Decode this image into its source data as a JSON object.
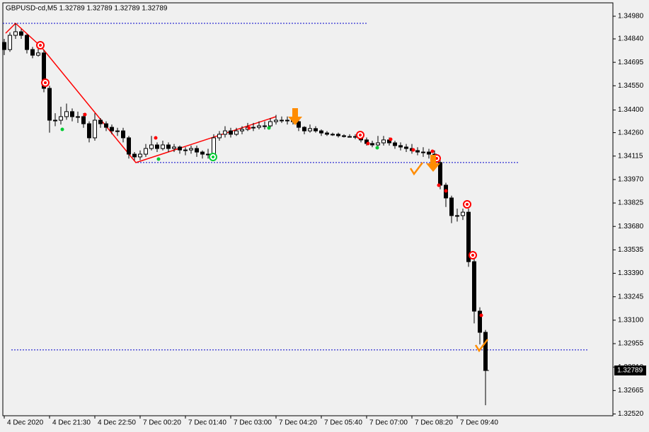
{
  "chart_data": {
    "type": "candlestick",
    "title": "GBPUSD-cd,M5  1.32789 1.32789 1.32789 1.32789",
    "open": [
      1.34818,
      1.34774,
      1.34862,
      1.34884,
      1.34862,
      1.34774,
      1.34739,
      1.34753,
      1.34534,
      1.34337,
      1.34337,
      1.34359,
      1.3439,
      1.34359,
      1.34359,
      1.34315,
      1.34228,
      1.34337,
      1.34315,
      1.34293,
      1.34271,
      1.34271,
      1.34228,
      1.34127,
      1.3411,
      1.34127,
      1.34162,
      1.34184,
      1.34162,
      1.34184,
      1.34162,
      1.34171,
      1.34153,
      1.34153,
      1.34162,
      1.3414,
      1.34127,
      1.34127,
      1.34228,
      1.3425,
      1.34271,
      1.3425,
      1.34271,
      1.3428,
      1.34293,
      1.34293,
      1.34302,
      1.34302,
      1.34328,
      1.34337,
      1.34337,
      1.34337,
      1.34328,
      1.34293,
      1.34271,
      1.34285,
      1.34271,
      1.34258,
      1.3425,
      1.3425,
      1.34241,
      1.34236,
      1.34236,
      1.34232,
      1.34215,
      1.34193,
      1.34184,
      1.34197,
      1.34215,
      1.34197,
      1.3418,
      1.34171,
      1.34162,
      1.34149,
      1.3414,
      1.3414,
      1.34127,
      1.34075,
      1.33935,
      1.33856,
      1.33747,
      1.33747,
      1.33768,
      1.33462,
      1.33156,
      1.33025
    ],
    "high": [
      1.3484,
      1.3488,
      1.34936,
      1.349,
      1.3487,
      1.3479,
      1.3478,
      1.3477,
      1.3455,
      1.3438,
      1.3442,
      1.3444,
      1.3441,
      1.3439,
      1.3438,
      1.3433,
      1.3438,
      1.3435,
      1.3433,
      1.3431,
      1.3429,
      1.3429,
      1.3424,
      1.3414,
      1.3415,
      1.3419,
      1.3424,
      1.342,
      1.3421,
      1.342,
      1.3419,
      1.3418,
      1.3417,
      1.3418,
      1.3418,
      1.3415,
      1.3416,
      1.3425,
      1.3427,
      1.343,
      1.3429,
      1.3429,
      1.343,
      1.3432,
      1.3432,
      1.3433,
      1.3433,
      1.3435,
      1.3437,
      1.3436,
      1.3436,
      1.3435,
      1.3434,
      1.343,
      1.3431,
      1.343,
      1.3428,
      1.3427,
      1.3426,
      1.3426,
      1.3425,
      1.3425,
      1.3425,
      1.3425,
      1.3423,
      1.3421,
      1.3424,
      1.3424,
      1.3423,
      1.3421,
      1.342,
      1.3419,
      1.3419,
      1.3417,
      1.3417,
      1.3416,
      1.3415,
      1.3409,
      1.3395,
      1.3387,
      1.3379,
      1.3379,
      1.3379,
      1.3348,
      1.3318,
      1.3304
    ],
    "low": [
      1.3474,
      1.3476,
      1.3484,
      1.3484,
      1.3475,
      1.3472,
      1.3473,
      1.3451,
      1.3426,
      1.343,
      1.3431,
      1.3434,
      1.3433,
      1.3432,
      1.3429,
      1.342,
      1.3421,
      1.3429,
      1.3427,
      1.3425,
      1.3424,
      1.342,
      1.341,
      1.3409,
      1.3409,
      1.3411,
      1.3415,
      1.3414,
      1.3415,
      1.3414,
      1.3414,
      1.3413,
      1.3412,
      1.3413,
      1.3411,
      1.341,
      1.341,
      1.3411,
      1.3421,
      1.3423,
      1.3423,
      1.3424,
      1.3425,
      1.3427,
      1.3427,
      1.3428,
      1.3428,
      1.3429,
      1.3431,
      1.3432,
      1.3431,
      1.3431,
      1.3427,
      1.3425,
      1.3426,
      1.3426,
      1.3424,
      1.3424,
      1.3424,
      1.3423,
      1.3423,
      1.3423,
      1.3422,
      1.342,
      1.3418,
      1.3417,
      1.3417,
      1.3418,
      1.3418,
      1.3416,
      1.3415,
      1.3414,
      1.3413,
      1.3412,
      1.3411,
      1.341,
      1.3405,
      1.3391,
      1.338,
      1.337,
      1.3371,
      1.3372,
      1.3343,
      1.3308,
      1.3295,
      1.32574
    ],
    "close": [
      1.34774,
      1.34862,
      1.34884,
      1.34862,
      1.34774,
      1.34739,
      1.34753,
      1.34534,
      1.34337,
      1.34337,
      1.34359,
      1.3439,
      1.34359,
      1.34359,
      1.34315,
      1.34228,
      1.34337,
      1.34315,
      1.34293,
      1.34271,
      1.34271,
      1.34228,
      1.34127,
      1.3411,
      1.34127,
      1.34162,
      1.34184,
      1.34162,
      1.34184,
      1.34162,
      1.34171,
      1.34153,
      1.34153,
      1.34162,
      1.3414,
      1.34127,
      1.34127,
      1.34228,
      1.3425,
      1.34271,
      1.3425,
      1.34271,
      1.3428,
      1.34293,
      1.34293,
      1.34302,
      1.34302,
      1.34328,
      1.34337,
      1.34337,
      1.34337,
      1.34328,
      1.34293,
      1.34271,
      1.34285,
      1.34271,
      1.34258,
      1.3425,
      1.3425,
      1.34241,
      1.34236,
      1.34236,
      1.34232,
      1.34215,
      1.34193,
      1.34184,
      1.34197,
      1.34215,
      1.34197,
      1.3418,
      1.34171,
      1.34162,
      1.34149,
      1.3414,
      1.3414,
      1.34127,
      1.34075,
      1.33935,
      1.33856,
      1.33747,
      1.33747,
      1.33768,
      1.33462,
      1.33156,
      1.33025,
      1.32789
    ],
    "xlim": [
      -0.25,
      107.5
    ],
    "xticks": [
      {
        "value": 0,
        "label": "4 Dec 2020"
      },
      {
        "value": 8,
        "label": "4 Dec 21:30"
      },
      {
        "value": 16,
        "label": "4 Dec 22:50"
      },
      {
        "value": 24,
        "label": "7 Dec 00:20"
      },
      {
        "value": 32,
        "label": "7 Dec 01:40"
      },
      {
        "value": 40,
        "label": "7 Dec 03:00"
      },
      {
        "value": 48,
        "label": "7 Dec 04:20"
      },
      {
        "value": 56,
        "label": "7 Dec 05:40"
      },
      {
        "value": 64,
        "label": "7 Dec 07:00"
      },
      {
        "value": 72,
        "label": "7 Dec 08:20"
      },
      {
        "value": 80,
        "label": "7 Dec 09:40"
      }
    ],
    "ylim": [
      1.32509,
      1.35063
    ],
    "yticks": [
      {
        "value": 1.3498,
        "label": "1.34980"
      },
      {
        "value": 1.3484,
        "label": "1.34840"
      },
      {
        "value": 1.34695,
        "label": "1.34695"
      },
      {
        "value": 1.3455,
        "label": "1.34550"
      },
      {
        "value": 1.344,
        "label": "1.34400"
      },
      {
        "value": 1.3426,
        "label": "1.34260"
      },
      {
        "value": 1.34115,
        "label": "1.34115"
      },
      {
        "value": 1.3397,
        "label": "1.33970"
      },
      {
        "value": 1.33825,
        "label": "1.33825"
      },
      {
        "value": 1.3368,
        "label": "1.33680"
      },
      {
        "value": 1.33535,
        "label": "1.33535"
      },
      {
        "value": 1.3339,
        "label": "1.33390"
      },
      {
        "value": 1.33245,
        "label": "1.33245"
      },
      {
        "value": 1.331,
        "label": "1.33100"
      },
      {
        "value": 1.32955,
        "label": "1.32955"
      },
      {
        "value": 1.3281,
        "label": "1.32810"
      },
      {
        "value": 1.32665,
        "label": "1.32665"
      },
      {
        "value": 1.3252,
        "label": "1.32520"
      }
    ],
    "levels": [
      1.34936,
      1.34075,
      1.32916
    ],
    "last_price": 1.32789,
    "wick_color": "#000000",
    "up_color": "#ffffff",
    "down_color": "#000000",
    "level_color": "#0000cc"
  }
}
